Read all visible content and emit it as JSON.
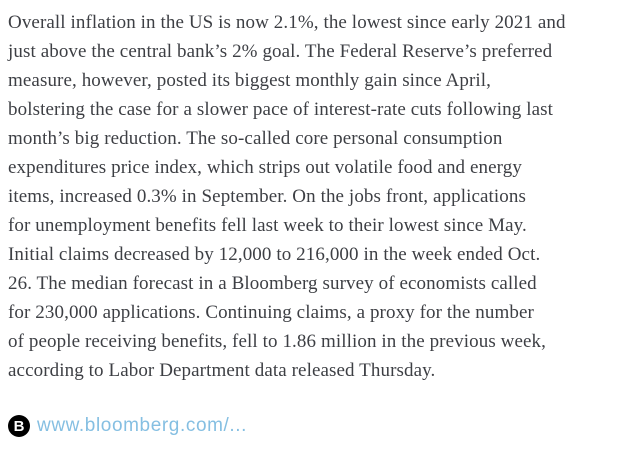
{
  "page": {
    "background_color": "#ffffff"
  },
  "article": {
    "text_color": "#3d3f44",
    "lines": [
      "Overall inflation in the US is now 2.1%, the lowest since early 2021 and",
      "just above the central bank’s 2% goal. The Federal Reserve’s preferred",
      "measure, however, posted its biggest monthly gain since April,",
      "bolstering the case for a slower pace of interest-rate cuts following last",
      "month’s big reduction. The so-called core personal consumption",
      "expenditures price index, which strips out volatile food and energy",
      "items, increased 0.3% in September. On the jobs front, applications",
      "for unemployment benefits fell last week to their lowest since May.",
      "Initial claims decreased by 12,000 to 216,000 in the week ended Oct.",
      "26. The median forecast in a Bloomberg survey of economists called",
      "for 230,000 applications. Continuing claims, a proxy for the number",
      "of people receiving benefits, fell to 1.86 million in the previous week,",
      "according to Labor Department data released Thursday."
    ]
  },
  "source": {
    "icon": {
      "name": "bloomberg-b-icon",
      "letter": "B",
      "background_color": "#000000",
      "letter_color": "#ffffff"
    },
    "link_label": "www.bloomberg.com/...",
    "link_color": "#85bfe2"
  }
}
